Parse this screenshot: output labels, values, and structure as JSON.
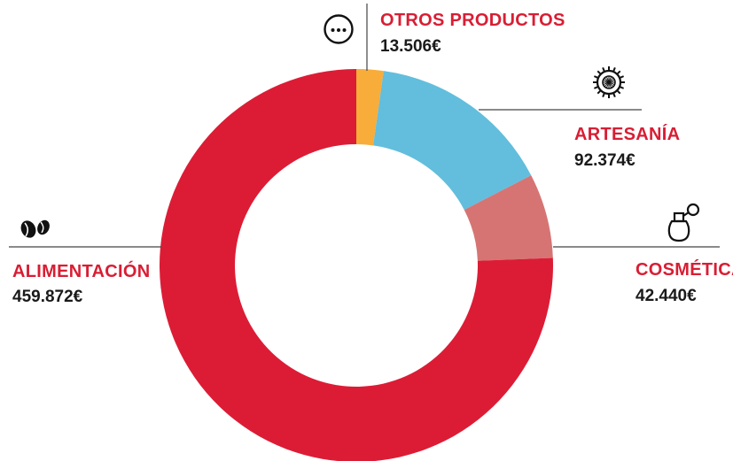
{
  "chart_data": {
    "type": "pie",
    "variant": "donut",
    "title": "",
    "label_color": "#d81e34",
    "categories": [
      "ALIMENTACIÓN",
      "OTROS PRODUCTOS",
      "ARTESANÍA",
      "COSMÉTICA"
    ],
    "series": [
      {
        "values": [
          459872,
          13506,
          92374,
          42440
        ],
        "value_labels": [
          "459.872€",
          "13.506€",
          "92.374€",
          "42.440€"
        ],
        "colors": [
          "#dc1c35",
          "#f8ac3a",
          "#62bedc",
          "#d67474"
        ],
        "icons": [
          "coffee-beans-icon",
          "ellipsis-icon",
          "ornament-icon",
          "perfume-bottle-icon"
        ]
      }
    ]
  }
}
